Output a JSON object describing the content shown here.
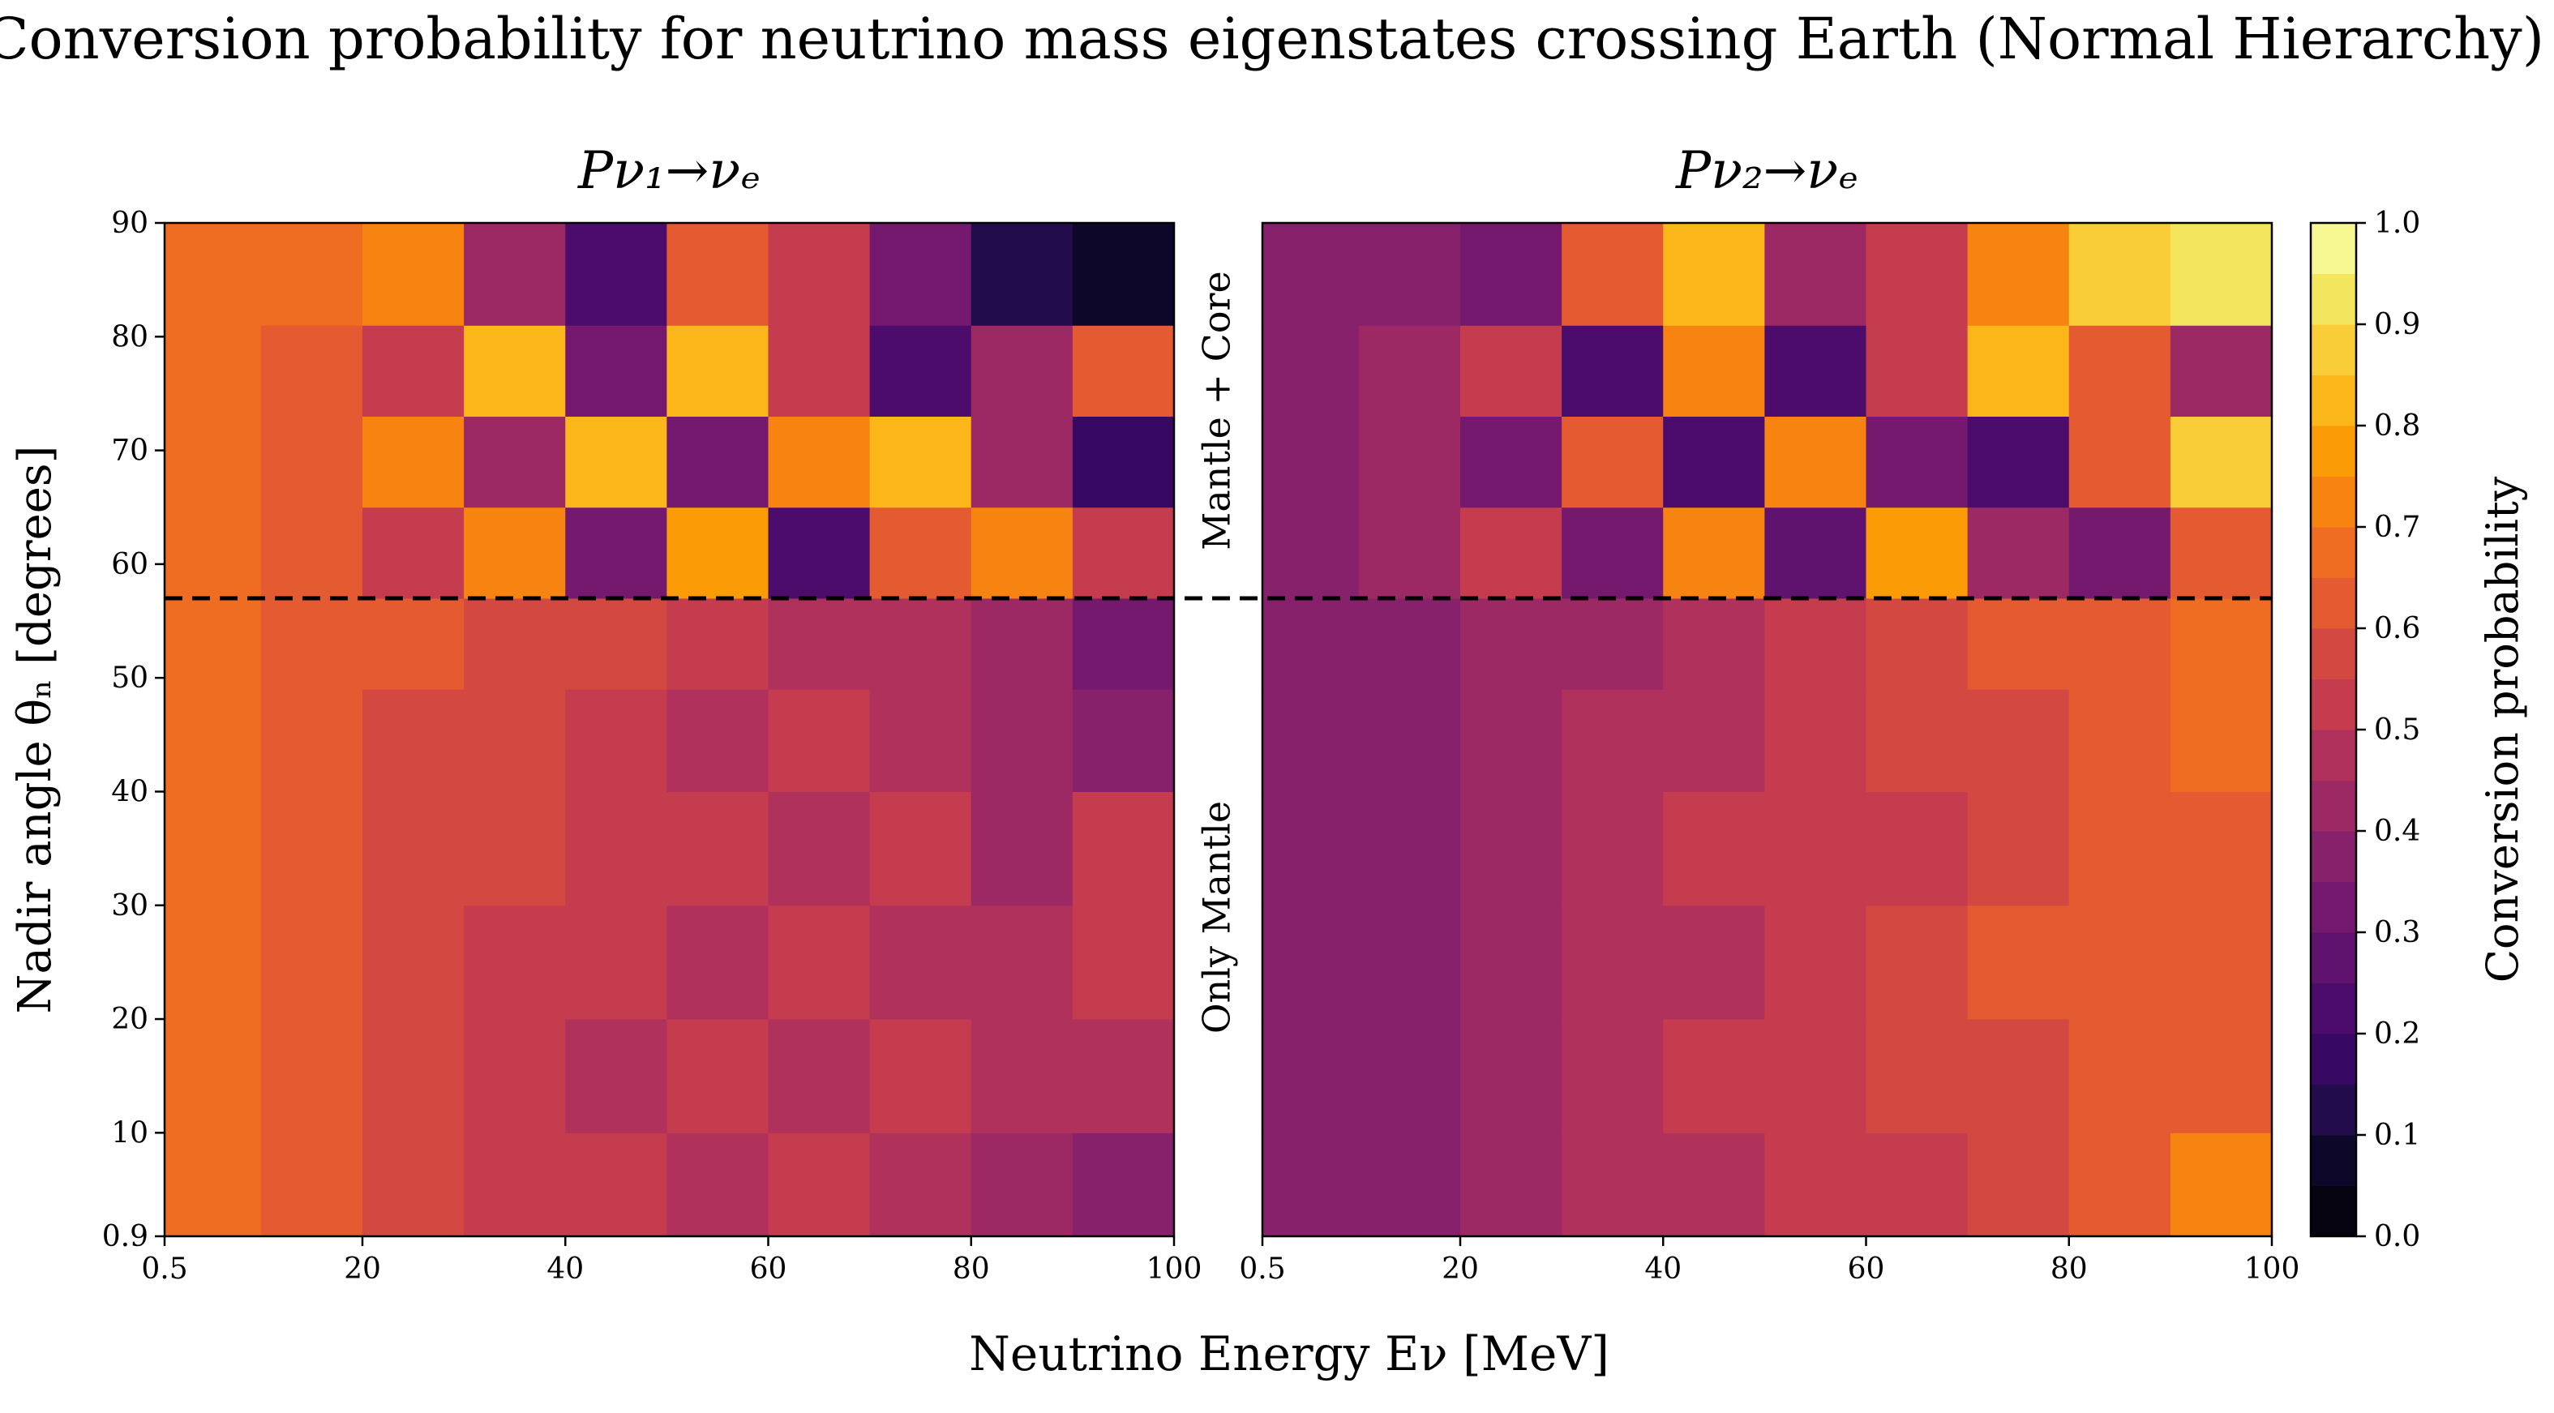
{
  "chart_data": {
    "type": "contour",
    "title": "Conversion probability for neutrino mass eigenstates crossing Earth (Normal Hierarchy)",
    "xlabel": "Neutrino Energy Eν [MeV]",
    "ylabel": "Nadir angle θₙ [degrees]",
    "xlim": [
      0.5,
      100
    ],
    "ylim": [
      0.9,
      90
    ],
    "xticks": [
      0.5,
      20,
      40,
      60,
      80,
      100
    ],
    "yticks": [
      0.9,
      10,
      20,
      30,
      40,
      50,
      60,
      70,
      80,
      90
    ],
    "boundary": 57,
    "region_labels": [
      "Mantle + Core",
      "Only Mantle"
    ],
    "panels": [
      {
        "title": "Pν₁→νₑ",
        "x": [
          5,
          15,
          25,
          35,
          45,
          55,
          65,
          75,
          85,
          95
        ],
        "y": [
          5,
          15,
          25,
          35,
          45,
          53,
          61,
          69,
          77,
          85
        ],
        "z": [
          [
            0.65,
            0.6,
            0.55,
            0.5,
            0.5,
            0.45,
            0.5,
            0.45,
            0.4,
            0.35
          ],
          [
            0.65,
            0.6,
            0.55,
            0.5,
            0.45,
            0.5,
            0.45,
            0.5,
            0.45,
            0.45
          ],
          [
            0.65,
            0.6,
            0.55,
            0.5,
            0.5,
            0.45,
            0.5,
            0.45,
            0.45,
            0.5
          ],
          [
            0.65,
            0.6,
            0.55,
            0.55,
            0.5,
            0.5,
            0.45,
            0.5,
            0.4,
            0.5
          ],
          [
            0.65,
            0.6,
            0.55,
            0.55,
            0.5,
            0.45,
            0.5,
            0.45,
            0.4,
            0.35
          ],
          [
            0.65,
            0.6,
            0.6,
            0.55,
            0.55,
            0.5,
            0.45,
            0.45,
            0.4,
            0.3
          ],
          [
            0.65,
            0.6,
            0.5,
            0.7,
            0.3,
            0.75,
            0.2,
            0.6,
            0.7,
            0.5
          ],
          [
            0.65,
            0.6,
            0.7,
            0.4,
            0.8,
            0.3,
            0.7,
            0.8,
            0.4,
            0.15
          ],
          [
            0.65,
            0.6,
            0.5,
            0.8,
            0.3,
            0.8,
            0.5,
            0.2,
            0.4,
            0.6
          ],
          [
            0.65,
            0.65,
            0.7,
            0.4,
            0.2,
            0.6,
            0.5,
            0.3,
            0.1,
            0.05
          ]
        ]
      },
      {
        "title": "Pν₂→νₑ",
        "x": [
          5,
          15,
          25,
          35,
          45,
          55,
          65,
          75,
          85,
          95
        ],
        "y": [
          5,
          15,
          25,
          35,
          45,
          53,
          61,
          69,
          77,
          85
        ],
        "z": [
          [
            0.35,
            0.35,
            0.4,
            0.45,
            0.45,
            0.5,
            0.5,
            0.55,
            0.6,
            0.7
          ],
          [
            0.35,
            0.35,
            0.4,
            0.45,
            0.5,
            0.5,
            0.55,
            0.55,
            0.6,
            0.6
          ],
          [
            0.35,
            0.35,
            0.4,
            0.45,
            0.45,
            0.5,
            0.55,
            0.6,
            0.6,
            0.6
          ],
          [
            0.35,
            0.35,
            0.4,
            0.45,
            0.5,
            0.5,
            0.5,
            0.55,
            0.6,
            0.6
          ],
          [
            0.35,
            0.35,
            0.4,
            0.45,
            0.45,
            0.5,
            0.55,
            0.55,
            0.6,
            0.65
          ],
          [
            0.35,
            0.35,
            0.4,
            0.4,
            0.45,
            0.5,
            0.55,
            0.6,
            0.6,
            0.65
          ],
          [
            0.35,
            0.4,
            0.5,
            0.3,
            0.7,
            0.25,
            0.75,
            0.4,
            0.3,
            0.6
          ],
          [
            0.35,
            0.4,
            0.3,
            0.6,
            0.2,
            0.7,
            0.3,
            0.2,
            0.6,
            0.85
          ],
          [
            0.35,
            0.4,
            0.5,
            0.2,
            0.7,
            0.2,
            0.5,
            0.8,
            0.6,
            0.4
          ],
          [
            0.35,
            0.35,
            0.3,
            0.6,
            0.8,
            0.4,
            0.5,
            0.7,
            0.85,
            0.9
          ]
        ]
      }
    ],
    "colorbar": {
      "label": "Conversion probability",
      "levels": [
        0,
        0.05,
        0.1,
        0.15,
        0.2,
        0.25,
        0.3,
        0.35,
        0.4,
        0.45,
        0.5,
        0.55,
        0.6,
        0.65,
        0.7,
        0.75,
        0.8,
        0.85,
        0.9,
        0.95,
        1
      ],
      "colors": [
        "#04030f",
        "#0d0829",
        "#220c4b",
        "#380962",
        "#4c0c6b",
        "#5f136e",
        "#74196e",
        "#87216b",
        "#9c2964",
        "#b0315b",
        "#c43c4e",
        "#d44842",
        "#e45a31",
        "#ef6c23",
        "#f78410",
        "#fb9b06",
        "#fbb61a",
        "#f8cd37",
        "#f3e55d",
        "#f8f893"
      ],
      "ticks": [
        {
          "value": 0,
          "label": "0.0"
        },
        0.1,
        0.2,
        0.3,
        0.4,
        0.5,
        0.6,
        0.7,
        0.8,
        0.9,
        {
          "value": 1,
          "label": "1.0"
        }
      ]
    }
  }
}
